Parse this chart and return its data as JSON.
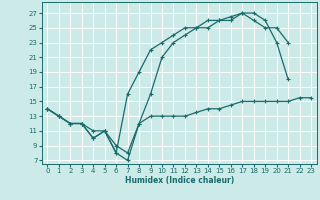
{
  "xlabel": "Humidex (Indice chaleur)",
  "bg_color": "#cceae8",
  "line_color": "#1a6b6b",
  "grid_color": "#ffffff",
  "xlim": [
    -0.5,
    23.5
  ],
  "ylim": [
    6.5,
    28.5
  ],
  "yticks": [
    7,
    9,
    11,
    13,
    15,
    17,
    19,
    21,
    23,
    25,
    27
  ],
  "xticks": [
    0,
    1,
    2,
    3,
    4,
    5,
    6,
    7,
    8,
    9,
    10,
    11,
    12,
    13,
    14,
    15,
    16,
    17,
    18,
    19,
    20,
    21,
    22,
    23
  ],
  "line1_x": [
    0,
    1,
    2,
    3,
    4,
    5,
    6,
    7,
    8,
    9,
    10,
    11,
    12,
    13,
    14,
    15,
    16,
    17,
    18,
    19,
    20,
    21
  ],
  "line1_y": [
    14,
    13,
    12,
    12,
    10,
    11,
    8,
    7,
    12,
    16,
    21,
    23,
    24,
    25,
    25,
    26,
    26,
    27,
    27,
    26,
    23,
    18
  ],
  "line2_x": [
    0,
    1,
    2,
    3,
    4,
    5,
    6,
    7,
    8,
    9,
    10,
    11,
    12,
    13,
    14,
    15,
    16,
    17,
    18,
    19,
    20,
    21
  ],
  "line2_y": [
    14,
    13,
    12,
    12,
    10,
    11,
    8,
    16,
    19,
    22,
    23,
    24,
    25,
    25,
    26,
    26,
    26.5,
    27,
    26,
    25,
    25,
    23
  ],
  "line3_x": [
    0,
    1,
    2,
    3,
    4,
    5,
    6,
    7,
    8,
    9,
    10,
    11,
    12,
    13,
    14,
    15,
    16,
    17,
    18,
    19,
    20,
    21,
    22,
    23
  ],
  "line3_y": [
    14,
    13,
    12,
    12,
    11,
    11,
    9,
    8,
    12,
    13,
    13,
    13,
    13,
    13.5,
    14,
    14,
    14.5,
    15,
    15,
    15,
    15,
    15,
    15.5,
    15.5
  ]
}
